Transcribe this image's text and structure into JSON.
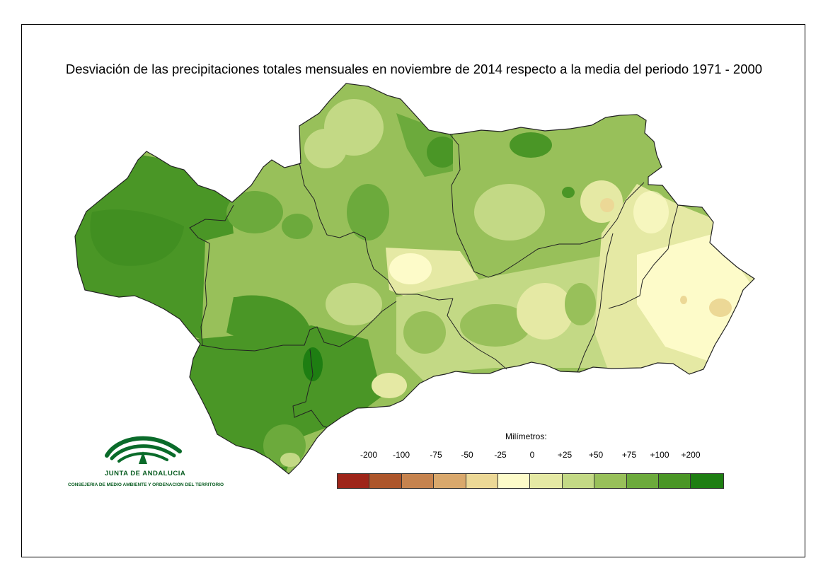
{
  "title": "Desviación de las precipitaciones totales mensuales en noviembre de 2014 respecto a la media del periodo 1971 - 2000",
  "legend": {
    "title": "Milímetros:",
    "labels": [
      "-200",
      "-100",
      "-75",
      "-50",
      "-25",
      "0",
      "+25",
      "+50",
      "+75",
      "+100",
      "+200"
    ],
    "colors": [
      "#9e2519",
      "#ad562b",
      "#c6834e",
      "#d9a86c",
      "#ecd896",
      "#fdfbc9",
      "#e5e9a4",
      "#c3d985",
      "#98c05a",
      "#6caa3c",
      "#4a9626",
      "#1e7e12"
    ]
  },
  "logo": {
    "name": "JUNTA DE ANDALUCIA",
    "subtitle": "CONSEJERIA DE MEDIO AMBIENTE Y ORDENACION DEL TERRITORIO"
  },
  "regions": [
    {
      "dominant": "+100"
    },
    {
      "dominant": "+75"
    },
    {
      "dominant": "+50"
    },
    {
      "dominant": "+25"
    },
    {
      "dominant": "0"
    }
  ]
}
